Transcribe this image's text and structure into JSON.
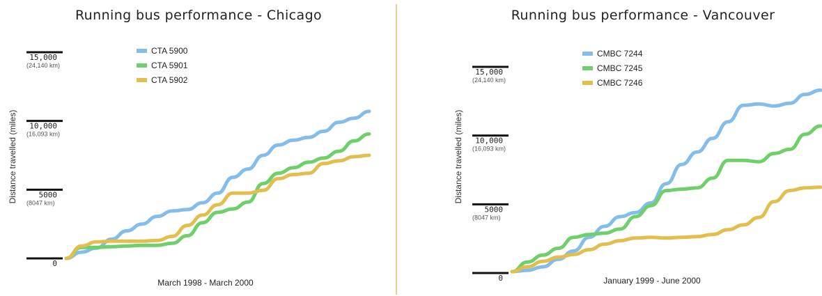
{
  "divider_color": "#e2c06a",
  "chart_data": [
    {
      "type": "line",
      "title": "Running bus performance - Chicago",
      "xlabel": "March 1998 - March 2000",
      "ylabel": "Distance travelled (miles)",
      "ylim": [
        0,
        15000
      ],
      "yticks": [
        {
          "value": 15000,
          "label": "15,000",
          "sublabel": "(24,140 km)"
        },
        {
          "value": 10000,
          "label": "10,000",
          "sublabel": "(16,093 km)"
        },
        {
          "value": 5000,
          "label": "5000",
          "sublabel": "(8047 km)"
        },
        {
          "value": 0,
          "label": "0",
          "sublabel": ""
        }
      ],
      "grid": false,
      "legend": "top-center",
      "x": [
        0,
        0.05,
        0.1,
        0.15,
        0.2,
        0.25,
        0.3,
        0.35,
        0.4,
        0.45,
        0.5,
        0.55,
        0.6,
        0.65,
        0.7,
        0.75,
        0.8,
        0.85,
        0.9,
        0.95,
        1
      ],
      "series": [
        {
          "name": "CTA 5900",
          "color": "#84bcea",
          "values": [
            0,
            450,
            750,
            1400,
            2000,
            2500,
            3050,
            3450,
            3550,
            4050,
            4750,
            5900,
            6500,
            7500,
            8250,
            8600,
            8800,
            9250,
            9900,
            10200,
            10700
          ]
        },
        {
          "name": "CTA 5901",
          "color": "#6fcf6a",
          "values": [
            0,
            800,
            800,
            850,
            900,
            950,
            950,
            1100,
            1650,
            2600,
            3350,
            3600,
            4100,
            5450,
            6200,
            6600,
            7000,
            7300,
            7800,
            8550,
            9050
          ]
        },
        {
          "name": "CTA 5902",
          "color": "#e1bf4e",
          "values": [
            0,
            900,
            1200,
            1250,
            1250,
            1250,
            1300,
            1600,
            2400,
            3150,
            3900,
            4750,
            4750,
            4950,
            5800,
            6100,
            6200,
            6900,
            7100,
            7400,
            7500
          ]
        }
      ]
    },
    {
      "type": "line",
      "title": "Running bus performance - Vancouver",
      "xlabel": "January 1999 - June 2000",
      "ylabel": "Distance travelled (miles)",
      "ylim": [
        0,
        15000
      ],
      "yticks": [
        {
          "value": 15000,
          "label": "15,000",
          "sublabel": "(24,140 km)"
        },
        {
          "value": 10000,
          "label": "10,000",
          "sublabel": "(16,093 km)"
        },
        {
          "value": 5000,
          "label": "5000",
          "sublabel": "(8047 km)"
        },
        {
          "value": 0,
          "label": "0",
          "sublabel": ""
        }
      ],
      "grid": false,
      "legend": "top-center",
      "x": [
        0,
        0.05,
        0.1,
        0.15,
        0.2,
        0.25,
        0.3,
        0.35,
        0.4,
        0.45,
        0.5,
        0.55,
        0.6,
        0.65,
        0.7,
        0.75,
        0.8,
        0.85,
        0.9,
        0.95,
        1
      ],
      "series": [
        {
          "name": "CMBC 7244",
          "color": "#84bcea",
          "values": [
            100,
            200,
            450,
            1000,
            1600,
            2600,
            3400,
            4100,
            4400,
            5100,
            6500,
            7900,
            8800,
            9800,
            11000,
            12200,
            12300,
            12150,
            12350,
            13000,
            13300
          ]
        },
        {
          "name": "CMBC 7245",
          "color": "#6fcf6a",
          "values": [
            100,
            800,
            1300,
            1800,
            2600,
            2800,
            2900,
            3200,
            4100,
            4900,
            6000,
            6100,
            6200,
            6900,
            8200,
            8200,
            8100,
            8700,
            9000,
            10100,
            10700
          ]
        },
        {
          "name": "CMBC 7246",
          "color": "#e1bf4e",
          "values": [
            100,
            450,
            850,
            1150,
            1350,
            1700,
            2100,
            2350,
            2550,
            2600,
            2550,
            2600,
            2650,
            2800,
            3150,
            3500,
            4050,
            5200,
            6000,
            6200,
            6250
          ]
        }
      ]
    }
  ]
}
